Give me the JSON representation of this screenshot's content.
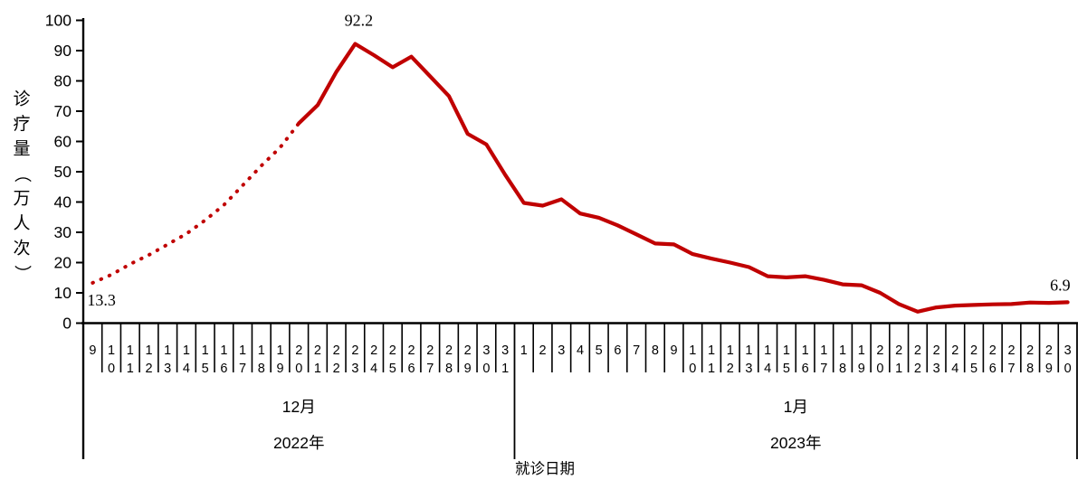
{
  "chart_data": {
    "type": "line",
    "y_title": "诊疗量（万人次）",
    "x_title": "就诊日期",
    "ylim": [
      0,
      100
    ],
    "yticks": [
      0,
      10,
      20,
      30,
      40,
      50,
      60,
      70,
      80,
      90,
      100
    ],
    "grid": false,
    "legend": "none",
    "line_color": "#c00000",
    "axis_color": "#000000",
    "groups": [
      {
        "month": "12月",
        "year": "2022年",
        "days": [
          "9",
          "10",
          "11",
          "12",
          "13",
          "14",
          "15",
          "16",
          "17",
          "18",
          "19",
          "20",
          "21",
          "22",
          "23",
          "24",
          "25",
          "26",
          "27",
          "28",
          "29",
          "30",
          "31"
        ]
      },
      {
        "month": "1月",
        "year": "2023年",
        "days": [
          "1",
          "2",
          "3",
          "4",
          "5",
          "6",
          "7",
          "8",
          "9",
          "10",
          "11",
          "12",
          "13",
          "14",
          "15",
          "16",
          "17",
          "18",
          "19",
          "20",
          "21",
          "22",
          "23",
          "24",
          "25",
          "26",
          "27",
          "28",
          "29",
          "30"
        ]
      }
    ],
    "values": [
      13.3,
      16,
      19.5,
      22.5,
      26,
      29.5,
      34,
      39,
      45.5,
      52,
      58,
      66,
      72,
      83,
      92.2,
      88.5,
      84.5,
      88,
      81.5,
      75,
      62.5,
      59,
      49,
      39.7,
      38.8,
      40.9,
      36.2,
      34.8,
      32.3,
      29.3,
      26.3,
      26,
      22.8,
      21.3,
      20,
      18.5,
      15.5,
      15.1,
      15.5,
      14.3,
      12.8,
      12.5,
      10,
      6.3,
      3.8,
      5.2,
      5.8,
      6,
      6.2,
      6.3,
      6.8,
      6.7,
      6.9
    ],
    "dotted_segment_end_index": 11,
    "annotations": [
      {
        "index": 0,
        "text": "13.3",
        "position": "below-start"
      },
      {
        "index": 14,
        "text": "92.2",
        "position": "above-peak"
      },
      {
        "index": 52,
        "text": "6.9",
        "position": "above-end"
      }
    ]
  }
}
